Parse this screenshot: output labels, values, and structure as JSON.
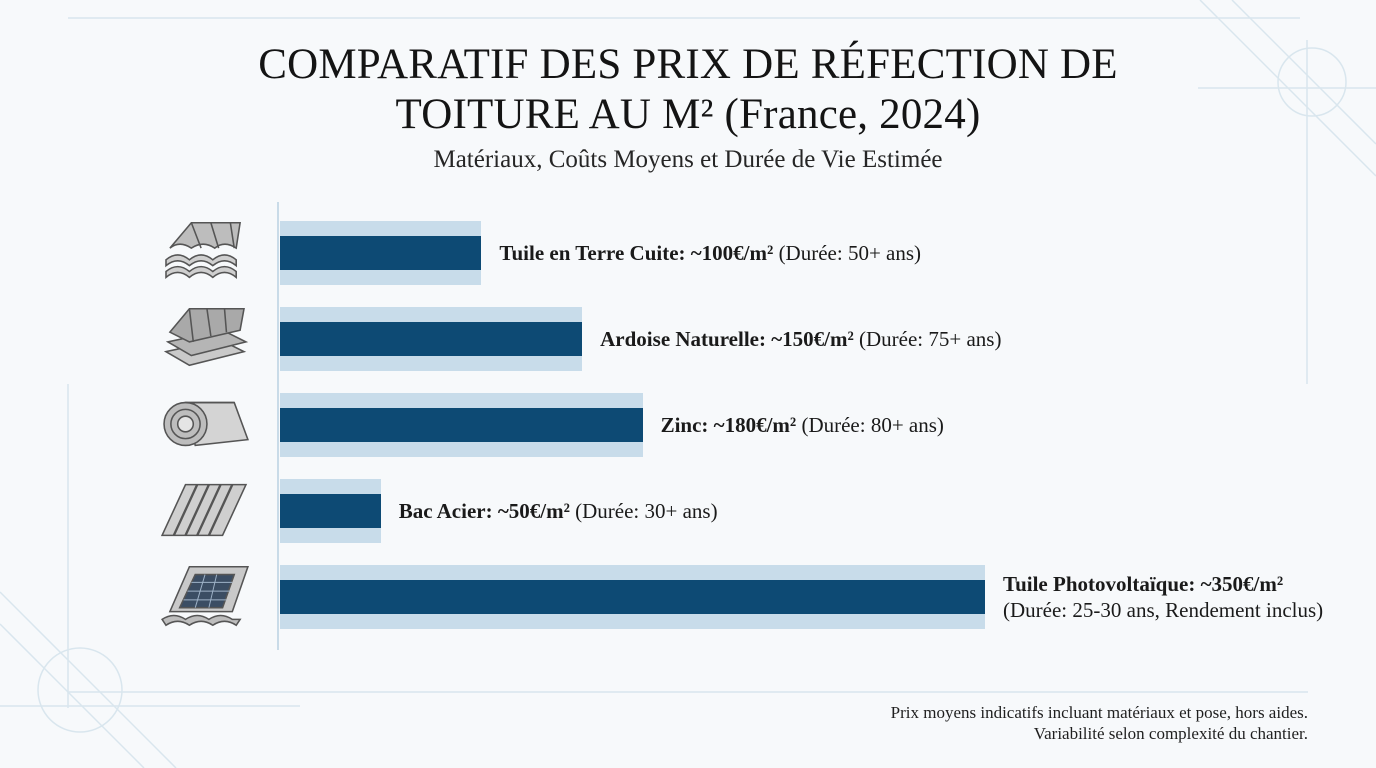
{
  "title_line1": "COMPARATIF DES PRIX DE RÉFECTION DE",
  "title_line2": "TOITURE AU M² (France, 2024)",
  "subtitle": "Matériaux, Coûts Moyens et Durée de Vie Estimée",
  "footnote_line1": "Prix moyens indicatifs incluant matériaux et pose, hors aides.",
  "footnote_line2": "Variabilité selon complexité du chantier.",
  "colors": {
    "bar": "#0d4a74",
    "band": "#c8dcea",
    "axis": "#c9dbe8"
  },
  "chart_data": {
    "type": "bar",
    "orientation": "horizontal",
    "title": "COMPARATIF DES PRIX DE RÉFECTION DE TOITURE AU M² (France, 2024)",
    "subtitle": "Matériaux, Coûts Moyens et Durée de Vie Estimée",
    "unit": "€/m²",
    "xlim": [
      0,
      350
    ],
    "grid": false,
    "categories": [
      "Tuile en Terre Cuite",
      "Ardoise Naturelle",
      "Zinc",
      "Bac Acier",
      "Tuile Photovoltaïque"
    ],
    "values": [
      100,
      150,
      180,
      50,
      350
    ],
    "bars": [
      {
        "icon": "clay-tile-icon",
        "value": 100,
        "name": "Tuile en Terre Cuite:",
        "price": "~100€/m²",
        "detail": "(Durée: 50+ ans)"
      },
      {
        "icon": "slate-icon",
        "value": 150,
        "name": "Ardoise Naturelle:",
        "price": "~150€/m²",
        "detail": "(Durée: 75+ ans)"
      },
      {
        "icon": "zinc-roll-icon",
        "value": 180,
        "name": "Zinc:",
        "price": "~180€/m²",
        "detail": "(Durée: 80+ ans)"
      },
      {
        "icon": "steel-sheet-icon",
        "value": 50,
        "name": "Bac Acier:",
        "price": "~50€/m²",
        "detail": "(Durée: 30+ ans)"
      },
      {
        "icon": "solar-tile-icon",
        "value": 350,
        "name": "Tuile Photovoltaïque:",
        "price": "~350€/m²",
        "detail": "(Durée: 25-30 ans, Rendement inclus)"
      }
    ]
  }
}
